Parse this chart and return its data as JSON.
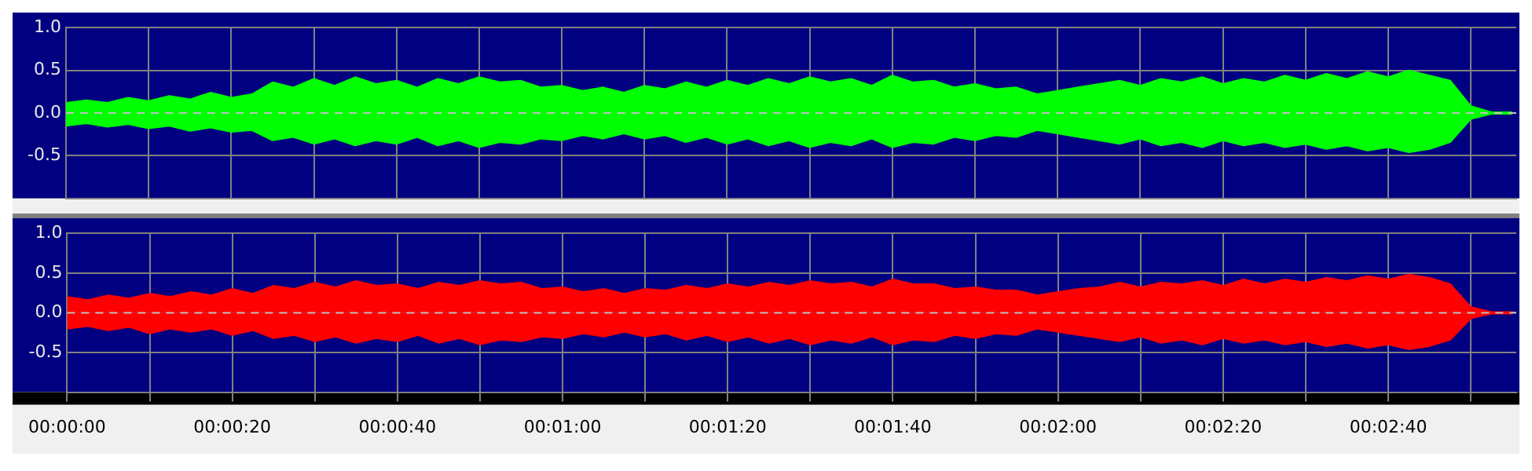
{
  "chart_data": [
    {
      "type": "area",
      "x": [
        0,
        2.5,
        5,
        7.5,
        10,
        12.5,
        15,
        17.5,
        20,
        22.5,
        25,
        27.5,
        30,
        32.5,
        35,
        37.5,
        40,
        42.5,
        45,
        47.5,
        50,
        52.5,
        55,
        57.5,
        60,
        62.5,
        65,
        67.5,
        70,
        72.5,
        75,
        77.5,
        80,
        82.5,
        85,
        87.5,
        90,
        92.5,
        95,
        97.5,
        100,
        102.5,
        105,
        107.5,
        110,
        112.5,
        115,
        117.5,
        120,
        122.5,
        125,
        127.5,
        130,
        132.5,
        135,
        137.5,
        140,
        142.5,
        145,
        147.5,
        150,
        152.5,
        155,
        157.5,
        160,
        162.5,
        165,
        167.5,
        170,
        172.5,
        175
      ],
      "series": [
        {
          "color": "#00ff00",
          "values": [
            0.12,
            0.15,
            0.12,
            0.18,
            0.14,
            0.2,
            0.16,
            0.24,
            0.18,
            0.22,
            0.36,
            0.3,
            0.4,
            0.32,
            0.42,
            0.34,
            0.38,
            0.3,
            0.4,
            0.34,
            0.42,
            0.36,
            0.38,
            0.3,
            0.32,
            0.26,
            0.3,
            0.24,
            0.32,
            0.28,
            0.36,
            0.3,
            0.38,
            0.32,
            0.4,
            0.34,
            0.42,
            0.36,
            0.4,
            0.32,
            0.44,
            0.36,
            0.38,
            0.3,
            0.34,
            0.28,
            0.3,
            0.22,
            0.26,
            0.3,
            0.34,
            0.38,
            0.32,
            0.4,
            0.36,
            0.42,
            0.34,
            0.4,
            0.36,
            0.44,
            0.38,
            0.46,
            0.4,
            0.48,
            0.42,
            0.5,
            0.44,
            0.38,
            0.08,
            0.01,
            0.01
          ]
        },
        {
          "color": "#00ff00",
          "values": [
            -0.15,
            -0.12,
            -0.16,
            -0.13,
            -0.18,
            -0.15,
            -0.21,
            -0.17,
            -0.22,
            -0.2,
            -0.32,
            -0.28,
            -0.36,
            -0.3,
            -0.38,
            -0.32,
            -0.36,
            -0.28,
            -0.38,
            -0.32,
            -0.4,
            -0.34,
            -0.36,
            -0.3,
            -0.32,
            -0.26,
            -0.3,
            -0.24,
            -0.3,
            -0.26,
            -0.34,
            -0.28,
            -0.36,
            -0.3,
            -0.38,
            -0.32,
            -0.4,
            -0.34,
            -0.38,
            -0.3,
            -0.4,
            -0.34,
            -0.36,
            -0.28,
            -0.32,
            -0.26,
            -0.28,
            -0.2,
            -0.24,
            -0.28,
            -0.32,
            -0.36,
            -0.3,
            -0.38,
            -0.34,
            -0.4,
            -0.32,
            -0.38,
            -0.34,
            -0.4,
            -0.36,
            -0.42,
            -0.38,
            -0.44,
            -0.4,
            -0.46,
            -0.42,
            -0.34,
            -0.07,
            -0.01,
            -0.01
          ]
        }
      ],
      "xlim": [
        0,
        175.5
      ],
      "xticks": [
        {
          "value": 0,
          "label": null
        },
        {
          "value": 10,
          "label": null
        },
        {
          "value": 20,
          "label": null
        },
        {
          "value": 30,
          "label": null
        },
        {
          "value": 40,
          "label": null
        },
        {
          "value": 50,
          "label": null
        },
        {
          "value": 60,
          "label": null
        },
        {
          "value": 70,
          "label": null
        },
        {
          "value": 80,
          "label": null
        },
        {
          "value": 90,
          "label": null
        },
        {
          "value": 100,
          "label": null
        },
        {
          "value": 110,
          "label": null
        },
        {
          "value": 120,
          "label": null
        },
        {
          "value": 130,
          "label": null
        },
        {
          "value": 140,
          "label": null
        },
        {
          "value": 150,
          "label": null
        },
        {
          "value": 160,
          "label": null
        },
        {
          "value": 170,
          "label": null
        }
      ],
      "ylim": [
        -1,
        1
      ],
      "yticks": [
        {
          "value": 1,
          "label": "1.0"
        },
        {
          "value": 0.5,
          "label": "0.5"
        },
        {
          "value": 0,
          "label": "0.0"
        },
        {
          "value": -0.5,
          "label": "-0.5"
        }
      ],
      "grid": true,
      "tick_labels": "y",
      "ref_lines": [
        {
          "axis": "y",
          "value": 0,
          "label": null,
          "color": "#c0c0c0",
          "line_style": "dashed"
        }
      ]
    },
    {
      "type": "area",
      "x": [
        0,
        2.5,
        5,
        7.5,
        10,
        12.5,
        15,
        17.5,
        20,
        22.5,
        25,
        27.5,
        30,
        32.5,
        35,
        37.5,
        40,
        42.5,
        45,
        47.5,
        50,
        52.5,
        55,
        57.5,
        60,
        62.5,
        65,
        67.5,
        70,
        72.5,
        75,
        77.5,
        80,
        82.5,
        85,
        87.5,
        90,
        92.5,
        95,
        97.5,
        100,
        102.5,
        105,
        107.5,
        110,
        112.5,
        115,
        117.5,
        120,
        122.5,
        125,
        127.5,
        130,
        132.5,
        135,
        137.5,
        140,
        142.5,
        145,
        147.5,
        150,
        152.5,
        155,
        157.5,
        160,
        162.5,
        165,
        167.5,
        170,
        172.5,
        175
      ],
      "series": [
        {
          "color": "#ff0000",
          "values": [
            0.2,
            0.16,
            0.22,
            0.18,
            0.24,
            0.2,
            0.26,
            0.22,
            0.3,
            0.24,
            0.34,
            0.3,
            0.38,
            0.32,
            0.4,
            0.34,
            0.36,
            0.3,
            0.38,
            0.34,
            0.4,
            0.36,
            0.38,
            0.3,
            0.32,
            0.26,
            0.3,
            0.24,
            0.3,
            0.28,
            0.34,
            0.3,
            0.36,
            0.32,
            0.38,
            0.34,
            0.4,
            0.36,
            0.38,
            0.32,
            0.42,
            0.36,
            0.36,
            0.3,
            0.32,
            0.28,
            0.28,
            0.22,
            0.26,
            0.3,
            0.32,
            0.38,
            0.32,
            0.38,
            0.36,
            0.4,
            0.34,
            0.42,
            0.36,
            0.42,
            0.38,
            0.44,
            0.4,
            0.46,
            0.42,
            0.48,
            0.44,
            0.36,
            0.07,
            0.01,
            0.01
          ]
        },
        {
          "color": "#ff0000",
          "values": [
            -0.2,
            -0.17,
            -0.22,
            -0.18,
            -0.26,
            -0.2,
            -0.24,
            -0.2,
            -0.28,
            -0.22,
            -0.32,
            -0.28,
            -0.36,
            -0.3,
            -0.38,
            -0.32,
            -0.36,
            -0.28,
            -0.38,
            -0.32,
            -0.4,
            -0.34,
            -0.36,
            -0.3,
            -0.32,
            -0.26,
            -0.3,
            -0.24,
            -0.3,
            -0.26,
            -0.34,
            -0.28,
            -0.36,
            -0.3,
            -0.38,
            -0.32,
            -0.4,
            -0.34,
            -0.38,
            -0.3,
            -0.4,
            -0.34,
            -0.36,
            -0.28,
            -0.32,
            -0.26,
            -0.28,
            -0.2,
            -0.24,
            -0.28,
            -0.32,
            -0.36,
            -0.3,
            -0.38,
            -0.34,
            -0.4,
            -0.32,
            -0.38,
            -0.34,
            -0.4,
            -0.36,
            -0.42,
            -0.38,
            -0.44,
            -0.4,
            -0.46,
            -0.42,
            -0.34,
            -0.07,
            -0.01,
            -0.01
          ]
        }
      ],
      "xlim": [
        0,
        175.5
      ],
      "xticks": [
        {
          "value": 0,
          "label": "00:00:00"
        },
        {
          "value": 10,
          "label": null
        },
        {
          "value": 20,
          "label": "00:00:20"
        },
        {
          "value": 30,
          "label": null
        },
        {
          "value": 40,
          "label": "00:00:40"
        },
        {
          "value": 50,
          "label": null
        },
        {
          "value": 60,
          "label": "00:01:00"
        },
        {
          "value": 70,
          "label": null
        },
        {
          "value": 80,
          "label": "00:01:20"
        },
        {
          "value": 90,
          "label": null
        },
        {
          "value": 100,
          "label": "00:01:40"
        },
        {
          "value": 110,
          "label": null
        },
        {
          "value": 120,
          "label": "00:02:00"
        },
        {
          "value": 130,
          "label": null
        },
        {
          "value": 140,
          "label": "00:02:20"
        },
        {
          "value": 150,
          "label": null
        },
        {
          "value": 160,
          "label": "00:02:40"
        },
        {
          "value": 170,
          "label": null
        }
      ],
      "ylim": [
        -1,
        1
      ],
      "yticks": [
        {
          "value": 1,
          "label": "1.0"
        },
        {
          "value": 0.5,
          "label": "0.5"
        },
        {
          "value": 0,
          "label": "0.0"
        },
        {
          "value": -0.5,
          "label": "-0.5"
        }
      ],
      "grid": true,
      "ref_lines": [
        {
          "axis": "y",
          "value": 0,
          "label": null,
          "color": "#c0c0c0",
          "line_style": "dashed"
        }
      ]
    }
  ]
}
